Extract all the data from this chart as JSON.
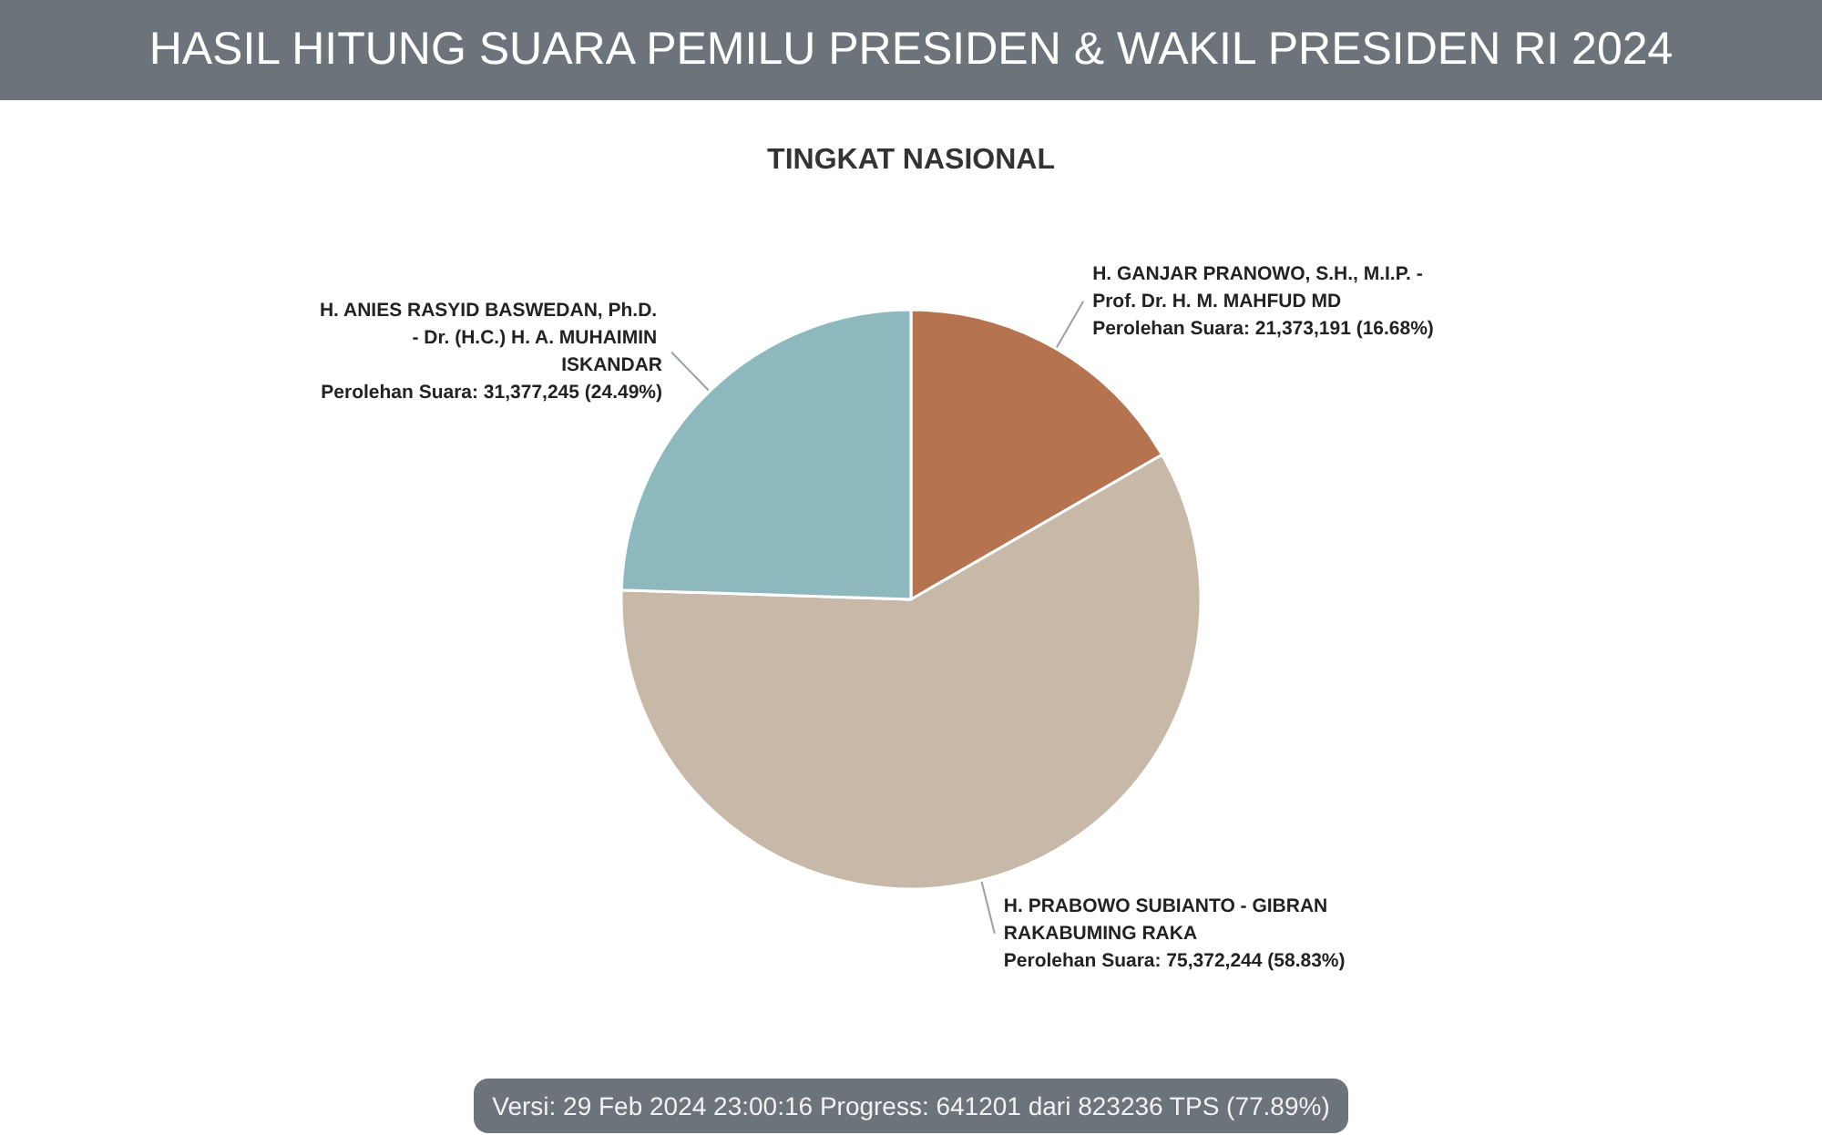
{
  "chart_data": {
    "type": "pie",
    "title": "HASIL HITUNG SUARA PEMILU PRESIDEN & WAKIL PRESIDEN RI 2024",
    "subtitle": "TINGKAT NASIONAL",
    "categories": [
      "H. GANJAR PRANOWO, S.H., M.I.P. - Prof. Dr. H. M. MAHFUD MD",
      "H. PRABOWO SUBIANTO - GIBRAN RAKABUMING RAKA",
      "H. ANIES RASYID BASWEDAN, Ph.D. - Dr. (H.C.) H. A. MUHAIMIN ISKANDAR"
    ],
    "values": [
      21373191,
      75372244,
      31377245
    ],
    "colors": [
      "#b5734f",
      "#c8b8a8",
      "#8db9be"
    ],
    "value_labels": [
      "Perolehan Suara: 21,373,191 (16.68%)",
      "Perolehan Suara: 75,372,244 (58.83%)",
      "Perolehan Suara: 31,377,245 (24.49%)"
    ],
    "annotations": [
      "Versi: 29 Feb 2024 23:00:16 Progress: 641201 dari 823236 TPS (77.89%)"
    ]
  }
}
